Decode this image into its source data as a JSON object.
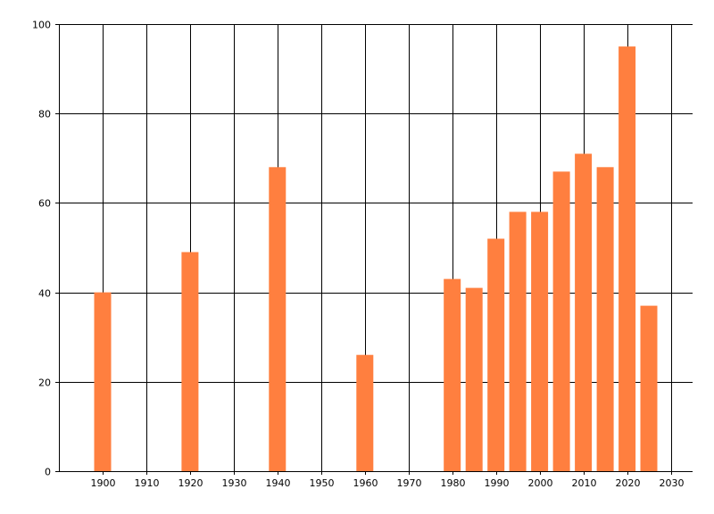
{
  "chart_data": {
    "type": "bar",
    "title": "",
    "xlabel": "",
    "ylabel": "",
    "x": [
      1900,
      1920,
      1940,
      1960,
      1980,
      1985,
      1990,
      1995,
      2000,
      2005,
      2010,
      2015,
      2020,
      2025
    ],
    "values": [
      40,
      49,
      68,
      26,
      43,
      41,
      52,
      58,
      58,
      67,
      71,
      68,
      95,
      37
    ],
    "xlim": [
      1890,
      2035
    ],
    "ylim": [
      0,
      100
    ],
    "x_ticks": [
      "1900",
      "1910",
      "1920",
      "1930",
      "1940",
      "1950",
      "1960",
      "1970",
      "1980",
      "1990",
      "2000",
      "2010",
      "2020",
      "2030"
    ],
    "y_ticks": [
      "0",
      "20",
      "40",
      "60",
      "80",
      "100"
    ],
    "grid": true,
    "bar_color": "#ff7f3f",
    "grid_color": "#000000"
  }
}
